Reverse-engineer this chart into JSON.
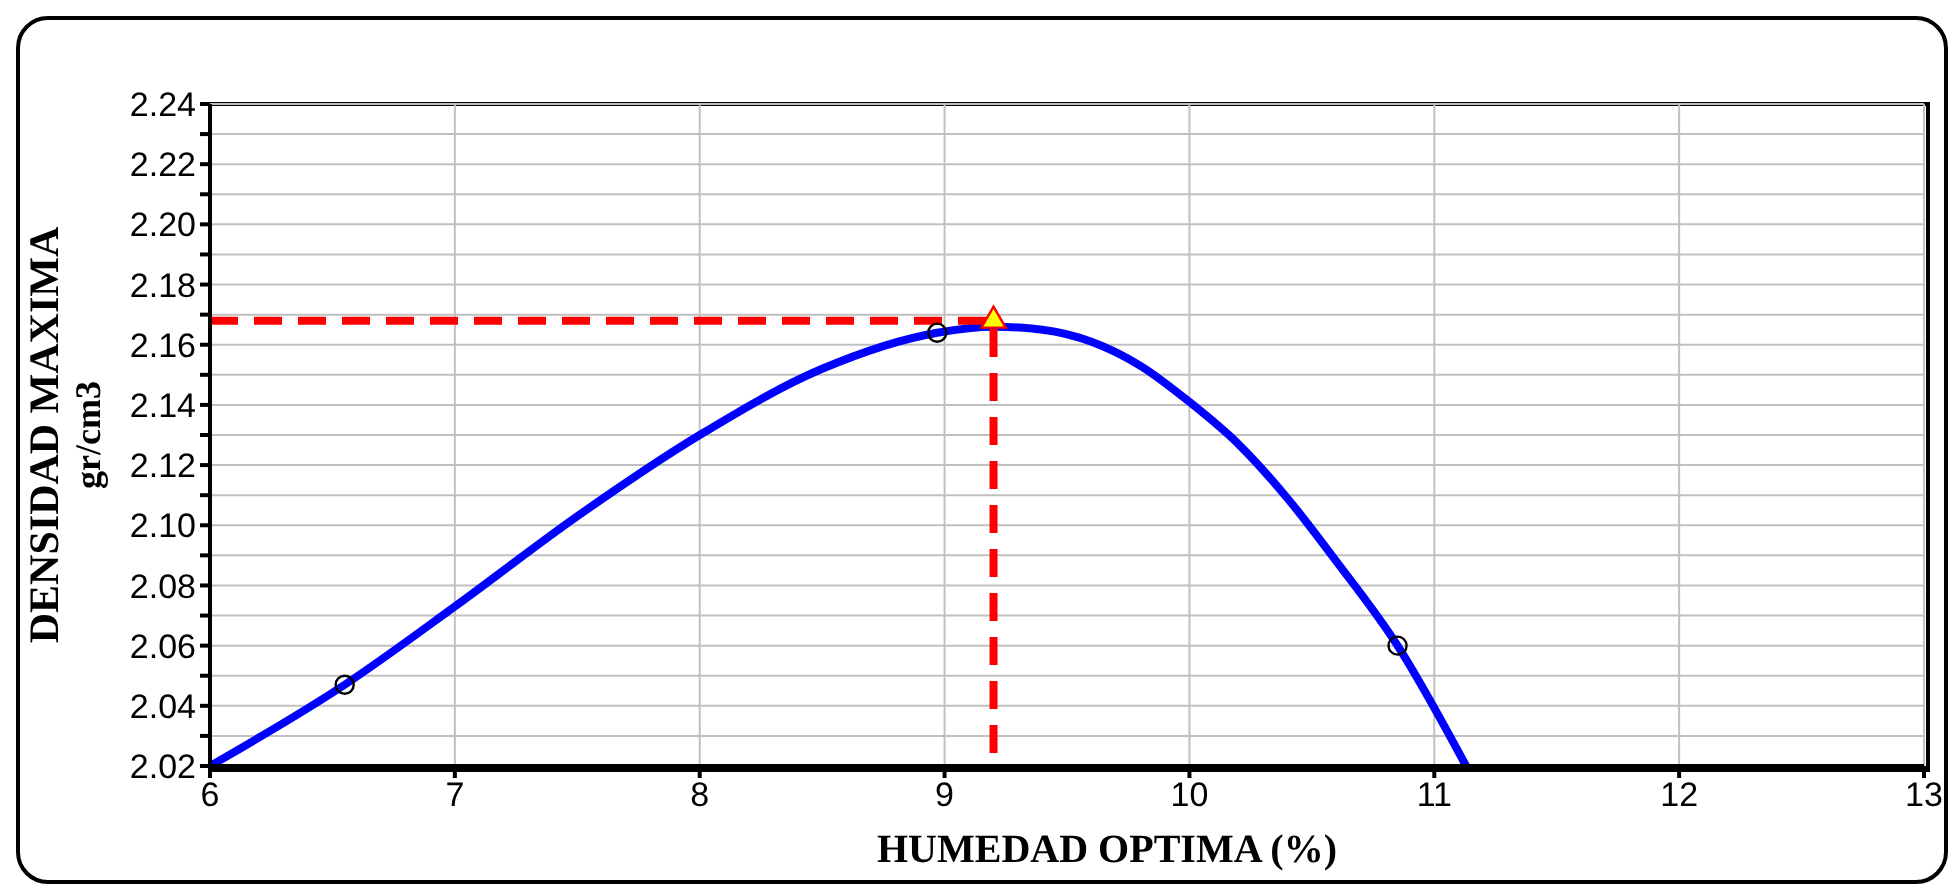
{
  "chart_data": {
    "type": "line",
    "xlabel": "HUMEDAD OPTIMA (%)",
    "ylabel": "DENSIDAD MAXIMA\ngr/cm3",
    "xlim": [
      6,
      13
    ],
    "xticks": [
      6,
      7,
      8,
      9,
      10,
      11,
      12,
      13
    ],
    "ylim": [
      2.02,
      2.24
    ],
    "yticks": [
      2.02,
      {
        "value": 2.03,
        "label": null
      },
      2.04,
      {
        "value": 2.05,
        "label": null
      },
      2.06,
      {
        "value": 2.07,
        "label": null
      },
      2.08,
      {
        "value": 2.09,
        "label": null
      },
      {
        "value": 2.1,
        "label": "2.10"
      },
      {
        "value": 2.11,
        "label": null
      },
      2.12,
      {
        "value": 2.13,
        "label": null
      },
      2.14,
      {
        "value": 2.15,
        "label": null
      },
      2.16,
      {
        "value": 2.17,
        "label": null
      },
      2.18,
      {
        "value": 2.19,
        "label": null
      },
      {
        "value": 2.2,
        "label": "2.20"
      },
      {
        "value": 2.21,
        "label": null
      },
      2.22,
      {
        "value": 2.23,
        "label": null
      },
      2.24
    ],
    "grid": true,
    "series": [
      {
        "color": "#0000ff",
        "marker": "none",
        "line_style": "solid",
        "x": [
          6,
          6.55,
          7,
          7.5,
          8,
          8.5,
          8.97,
          9.2,
          9.4,
          9.6,
          9.8,
          10,
          10.2,
          10.4,
          10.6,
          10.85,
          11.13
        ],
        "values": [
          2.02,
          2.047,
          2.073,
          2.103,
          2.13,
          2.152,
          2.164,
          2.166,
          2.165,
          2.161,
          2.153,
          2.141,
          2.127,
          2.109,
          2.088,
          2.06,
          2.02
        ]
      },
      {
        "type": "scatter",
        "color": "#000000",
        "marker": "circle",
        "x": [
          6.55,
          8.97,
          10.85
        ],
        "values": [
          2.047,
          2.164,
          2.06
        ]
      },
      {
        "color": "#ff0000",
        "marker": "none",
        "line_style": "dashed",
        "x": [
          6,
          9.2,
          9.2
        ],
        "values": [
          2.168,
          2.168,
          2.02
        ]
      },
      {
        "type": "scatter",
        "color": "#ffff00",
        "marker": "triangle",
        "x": [
          9.2
        ],
        "values": [
          2.168
        ]
      }
    ]
  }
}
